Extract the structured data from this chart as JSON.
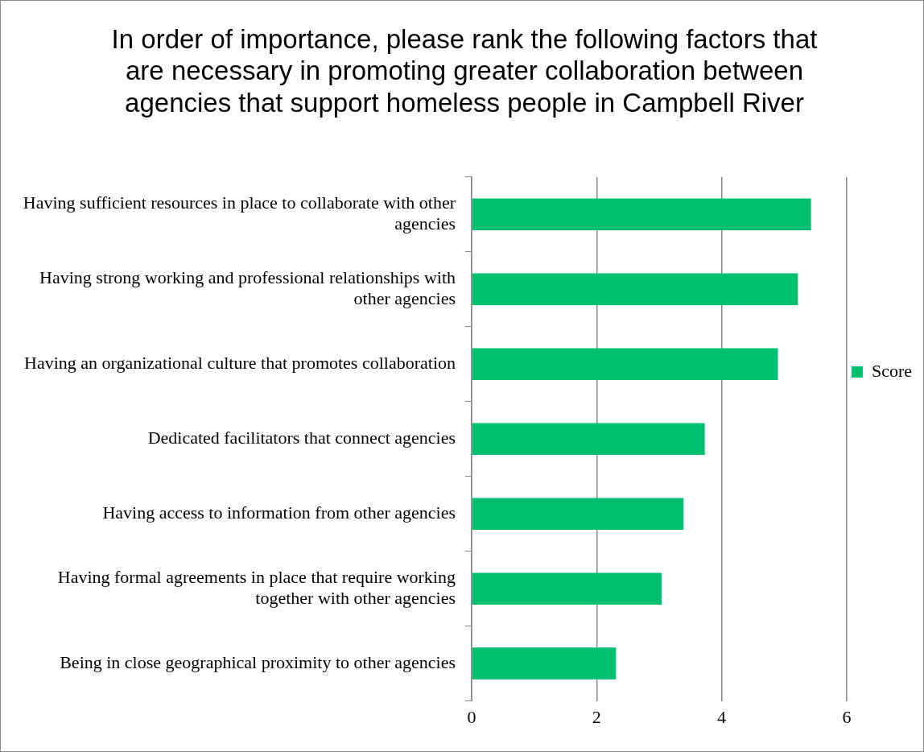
{
  "chart_data": {
    "type": "bar",
    "orientation": "horizontal",
    "title": "In order of importance, please rank the following factors that are necessary in promoting greater collaboration between agencies that support homeless people in Campbell River",
    "categories": [
      "Having sufficient resources in place to collaborate with other agencies",
      "Having strong working and professional relationships with other agencies",
      "Having an organizational culture that promotes collaboration",
      "Dedicated facilitators that connect agencies",
      "Having access to information from other agencies",
      "Having formal agreements in place that require working together with other agencies",
      "Being in close geographical proximity to other agencies"
    ],
    "series": [
      {
        "name": "Score",
        "color": "#00c070",
        "values": [
          5.43,
          5.22,
          4.9,
          3.73,
          3.39,
          3.04,
          2.31
        ]
      }
    ],
    "xlim": [
      0,
      6
    ],
    "xticks": [
      0,
      2,
      4,
      6
    ],
    "grid": "x",
    "legend": "right"
  }
}
